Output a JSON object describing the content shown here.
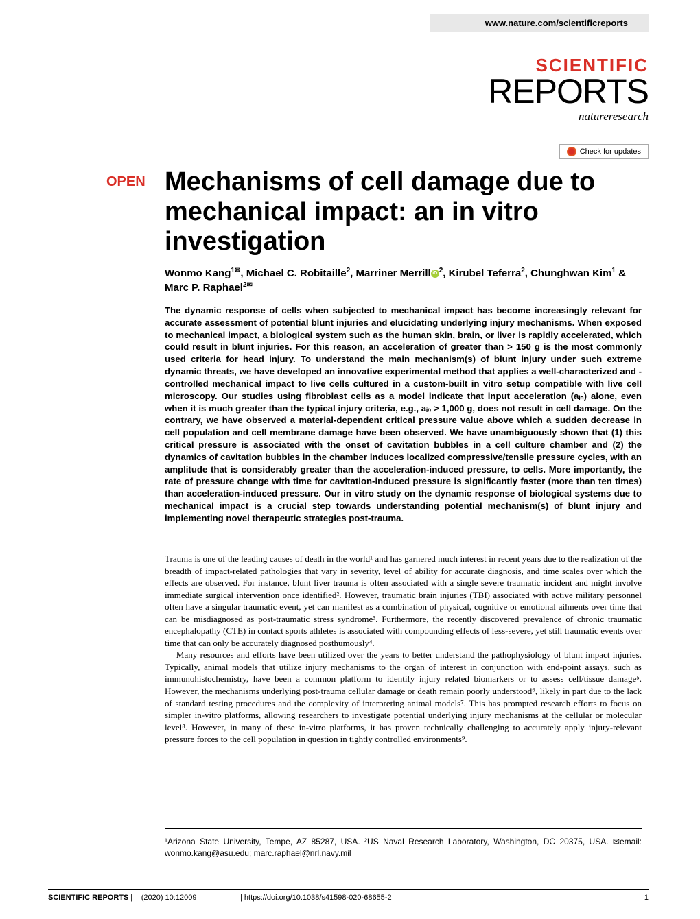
{
  "header": {
    "website": "www.nature.com/scientificreports"
  },
  "journal": {
    "line1": "SCIENTIFIC",
    "line2": "REPORTS",
    "subtitle": "natureresearch",
    "check_updates": "Check for updates"
  },
  "article": {
    "open_label": "OPEN",
    "title": "Mechanisms of cell damage due to mechanical impact: an in vitro investigation"
  },
  "authors": {
    "a1_name": "Wonmo Kang",
    "a1_sup": "1✉",
    "a2_name": "Michael C. Robitaille",
    "a2_sup": "2",
    "a3_name": "Marriner Merrill",
    "a3_sup": "2",
    "a4_name": "Kirubel Teferra",
    "a4_sup": "2",
    "a5_name": "Chunghwan Kim",
    "a5_sup": "1",
    "a6_name": "Marc P. Raphael",
    "a6_sup": "2✉"
  },
  "abstract": {
    "text": "The dynamic response of cells when subjected to mechanical impact has become increasingly relevant for accurate assessment of potential blunt injuries and elucidating underlying injury mechanisms. When exposed to mechanical impact, a biological system such as the human skin, brain, or liver is rapidly accelerated, which could result in blunt injuries. For this reason, an acceleration of greater than > 150 g is the most commonly used criteria for head injury. To understand the main mechanism(s) of blunt injury under such extreme dynamic threats, we have developed an innovative experimental method that applies a well-characterized and -controlled mechanical impact to live cells cultured in a custom-built in vitro setup compatible with live cell microscopy. Our studies using fibroblast cells as a model indicate that input acceleration (aᵢₙ) alone, even when it is much greater than the typical injury criteria, e.g., aᵢₙ > 1,000 g, does not result in cell damage. On the contrary, we have observed a material-dependent critical pressure value above which a sudden decrease in cell population and cell membrane damage have been observed. We have unambiguously shown that (1) this critical pressure is associated with the onset of cavitation bubbles in a cell culture chamber and (2) the dynamics of cavitation bubbles in the chamber induces localized compressive/tensile pressure cycles, with an amplitude that is considerably greater than the acceleration-induced pressure, to cells. More importantly, the rate of pressure change with time for cavitation-induced pressure is significantly faster (more than ten times) than acceleration-induced pressure. Our in vitro study on the dynamic response of biological systems due to mechanical impact is a crucial step towards understanding potential mechanism(s) of blunt injury and implementing novel therapeutic strategies post-trauma."
  },
  "body": {
    "p1": "Trauma is one of the leading causes of death in the world¹ and has garnered much interest in recent years due to the realization of the breadth of impact-related pathologies that vary in severity, level of ability for accurate diagnosis, and time scales over which the effects are observed. For instance, blunt liver trauma is often associated with a single severe traumatic incident and might involve immediate surgical intervention once identified². However, traumatic brain injuries (TBI) associated with active military personnel often have a singular traumatic event, yet can manifest as a combination of physical, cognitive or emotional ailments over time that can be misdiagnosed as post-traumatic stress syndrome³. Furthermore, the recently discovered prevalence of chronic traumatic encephalopathy (CTE) in contact sports athletes is associated with compounding effects of less-severe, yet still traumatic events over time that can only be accurately diagnosed posthumously⁴.",
    "p2": "Many resources and efforts have been utilized over the years to better understand the pathophysiology of blunt impact injuries. Typically, animal models that utilize injury mechanisms to the organ of interest in conjunction with end-point assays, such as immunohistochemistry, have been a common platform to identify injury related biomarkers or to assess cell/tissue damage⁵. However, the mechanisms underlying post-trauma cellular damage or death remain poorly understood⁶, likely in part due to the lack of standard testing procedures and the complexity of interpreting animal models⁷. This has prompted research efforts to focus on simpler in-vitro platforms, allowing researchers to investigate potential underlying injury mechanisms at the cellular or molecular level⁸. However, in many of these in-vitro platforms, it has proven technically challenging to accurately apply injury-relevant pressure forces to the cell population in question in tightly controlled environments⁹."
  },
  "affiliations": {
    "text": "¹Arizona State University, Tempe, AZ 85287, USA. ²US Naval Research Laboratory, Washington, DC 20375, USA. ✉email: wonmo.kang@asu.edu; marc.raphael@nrl.navy.mil"
  },
  "footer": {
    "journal": "SCIENTIFIC REPORTS",
    "citation": "(2020) 10:12009",
    "doi": "| https://doi.org/10.1038/s41598-020-68655-2",
    "page": "1"
  },
  "colors": {
    "red": "#d92f27",
    "link_blue": "#0066cc",
    "header_bg": "#e8e8e8",
    "orcid_green": "#a6ce39"
  }
}
